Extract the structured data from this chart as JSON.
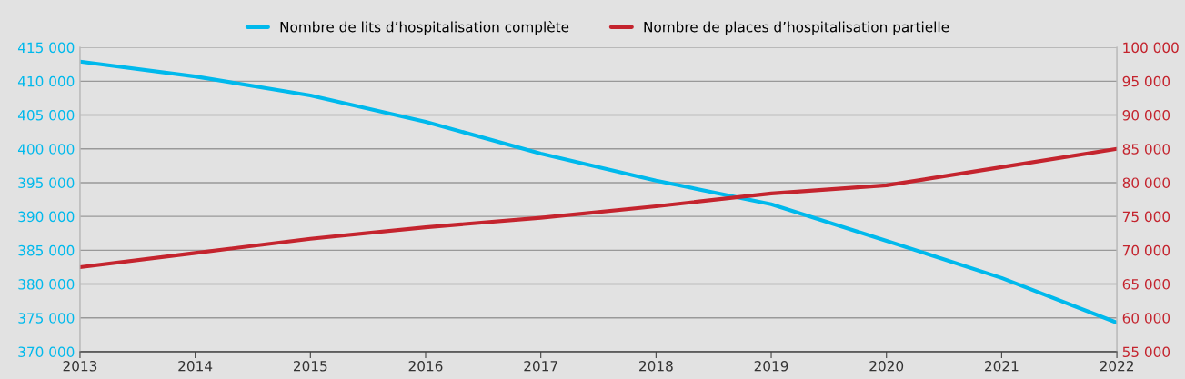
{
  "chart_data": {
    "type": "line",
    "categories": [
      "2013",
      "2014",
      "2015",
      "2016",
      "2017",
      "2018",
      "2019",
      "2020",
      "2021",
      "2022"
    ],
    "series": [
      {
        "name": "Nombre de lits d’hospitalisation complète",
        "color": "#00b9ec",
        "values": [
          412900,
          410700,
          407900,
          404000,
          399300,
          395300,
          391800,
          386400,
          380900,
          374300
        ]
      },
      {
        "name": "Nombre de places d’hospitalisation partielle",
        "color": "#c4242e",
        "axis": "y2",
        "values": [
          67500,
          69600,
          71700,
          73400,
          74800,
          76500,
          78400,
          79600,
          82300,
          85000
        ]
      }
    ],
    "ylim": [
      370000,
      415000
    ],
    "yticks": [
      {
        "value": 370000,
        "label": "370 000"
      },
      {
        "value": 375000,
        "label": "375 000"
      },
      {
        "value": 380000,
        "label": "380 000"
      },
      {
        "value": 385000,
        "label": "385 000"
      },
      {
        "value": 390000,
        "label": "390 000"
      },
      {
        "value": 395000,
        "label": "395 000"
      },
      {
        "value": 400000,
        "label": "400 000"
      },
      {
        "value": 405000,
        "label": "405 000"
      },
      {
        "value": 410000,
        "label": "410 000"
      },
      {
        "value": 415000,
        "label": "415 000"
      }
    ],
    "y2lim": [
      55000,
      100000
    ],
    "y2ticks": [
      {
        "value": 55000,
        "label": "55 000"
      },
      {
        "value": 60000,
        "label": "60 000"
      },
      {
        "value": 65000,
        "label": "65 000"
      },
      {
        "value": 70000,
        "label": "70 000"
      },
      {
        "value": 75000,
        "label": "75 000"
      },
      {
        "value": 80000,
        "label": "80 000"
      },
      {
        "value": 85000,
        "label": "85 000"
      },
      {
        "value": 90000,
        "label": "90 000"
      },
      {
        "value": 95000,
        "label": "95 000"
      },
      {
        "value": 100000,
        "label": "100 000"
      }
    ],
    "grid": "y",
    "legend": "top",
    "marker": "none",
    "line_style": "solid"
  }
}
